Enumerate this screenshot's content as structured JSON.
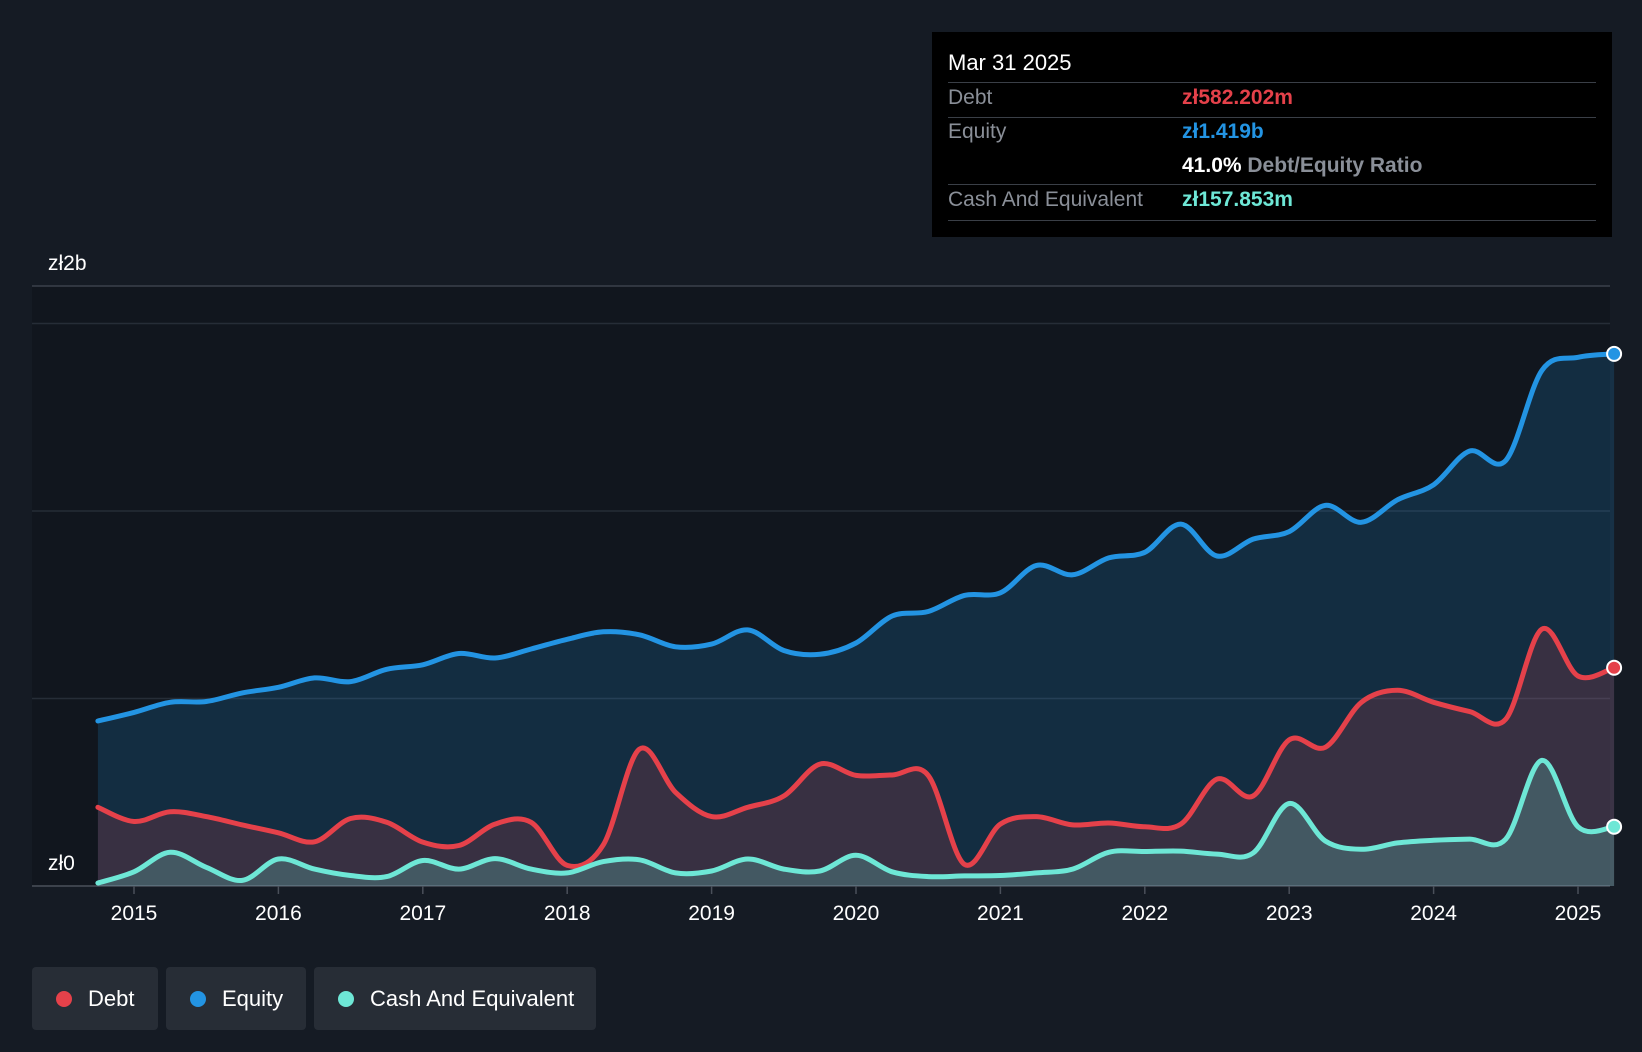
{
  "tooltip": {
    "date": "Mar 31 2025",
    "debt_label": "Debt",
    "debt_value": "zł582.202m",
    "equity_label": "Equity",
    "equity_value": "zł1.419b",
    "ratio_value": "41.0%",
    "ratio_label": "Debt/Equity Ratio",
    "cash_label": "Cash And Equivalent",
    "cash_value": "zł157.853m"
  },
  "legend": [
    {
      "label": "Debt",
      "color": "#e5414a"
    },
    {
      "label": "Equity",
      "color": "#2394e3"
    },
    {
      "label": "Cash And Equivalent",
      "color": "#6ee7d6"
    }
  ],
  "chart_data": {
    "type": "area",
    "y_top_label": "zł2b",
    "y_bottom_label": "zł0",
    "ylim": [
      0,
      2000
    ],
    "gridlines": [
      0,
      500,
      1000,
      1500
    ],
    "grid": true,
    "x_ticks": [
      "2015",
      "2016",
      "2017",
      "2018",
      "2019",
      "2020",
      "2021",
      "2022",
      "2023",
      "2024",
      "2025"
    ],
    "x_range": [
      2014.75,
      2025.25
    ],
    "series": [
      {
        "name": "Equity",
        "color": "#2394e3",
        "points": [
          [
            2014.75,
            440
          ],
          [
            2015.0,
            463
          ],
          [
            2015.25,
            490
          ],
          [
            2015.5,
            492
          ],
          [
            2015.75,
            515
          ],
          [
            2016.0,
            530
          ],
          [
            2016.25,
            555
          ],
          [
            2016.5,
            545
          ],
          [
            2016.75,
            578
          ],
          [
            2017.0,
            590
          ],
          [
            2017.25,
            620
          ],
          [
            2017.5,
            608
          ],
          [
            2017.75,
            632
          ],
          [
            2018.0,
            658
          ],
          [
            2018.25,
            678
          ],
          [
            2018.5,
            670
          ],
          [
            2018.75,
            638
          ],
          [
            2019.0,
            645
          ],
          [
            2019.25,
            683
          ],
          [
            2019.5,
            628
          ],
          [
            2019.75,
            618
          ],
          [
            2020.0,
            648
          ],
          [
            2020.25,
            720
          ],
          [
            2020.5,
            732
          ],
          [
            2020.75,
            775
          ],
          [
            2021.0,
            782
          ],
          [
            2021.25,
            855
          ],
          [
            2021.5,
            830
          ],
          [
            2021.75,
            875
          ],
          [
            2022.0,
            890
          ],
          [
            2022.25,
            965
          ],
          [
            2022.5,
            880
          ],
          [
            2022.75,
            925
          ],
          [
            2023.0,
            945
          ],
          [
            2023.25,
            1015
          ],
          [
            2023.5,
            970
          ],
          [
            2023.75,
            1030
          ],
          [
            2024.0,
            1070
          ],
          [
            2024.25,
            1160
          ],
          [
            2024.5,
            1135
          ],
          [
            2024.75,
            1375
          ],
          [
            2025.0,
            1410
          ],
          [
            2025.25,
            1419
          ]
        ]
      },
      {
        "name": "Debt",
        "color": "#e5414a",
        "points": [
          [
            2014.75,
            210
          ],
          [
            2015.0,
            172
          ],
          [
            2015.25,
            198
          ],
          [
            2015.5,
            185
          ],
          [
            2015.75,
            163
          ],
          [
            2016.0,
            142
          ],
          [
            2016.25,
            118
          ],
          [
            2016.5,
            180
          ],
          [
            2016.75,
            170
          ],
          [
            2017.0,
            117
          ],
          [
            2017.25,
            108
          ],
          [
            2017.5,
            165
          ],
          [
            2017.75,
            170
          ],
          [
            2018.0,
            55
          ],
          [
            2018.25,
            110
          ],
          [
            2018.5,
            365
          ],
          [
            2018.75,
            250
          ],
          [
            2019.0,
            185
          ],
          [
            2019.25,
            210
          ],
          [
            2019.5,
            240
          ],
          [
            2019.75,
            325
          ],
          [
            2020.0,
            295
          ],
          [
            2020.25,
            296
          ],
          [
            2020.5,
            295
          ],
          [
            2020.75,
            58
          ],
          [
            2021.0,
            165
          ],
          [
            2021.25,
            185
          ],
          [
            2021.5,
            163
          ],
          [
            2021.75,
            168
          ],
          [
            2022.0,
            158
          ],
          [
            2022.25,
            165
          ],
          [
            2022.5,
            285
          ],
          [
            2022.75,
            240
          ],
          [
            2023.0,
            390
          ],
          [
            2023.25,
            370
          ],
          [
            2023.5,
            490
          ],
          [
            2023.75,
            522
          ],
          [
            2024.0,
            490
          ],
          [
            2024.25,
            465
          ],
          [
            2024.5,
            445
          ],
          [
            2024.75,
            685
          ],
          [
            2025.0,
            560
          ],
          [
            2025.25,
            582
          ]
        ]
      },
      {
        "name": "Cash And Equivalent",
        "color": "#6ee7d6",
        "points": [
          [
            2014.75,
            8
          ],
          [
            2015.0,
            38
          ],
          [
            2015.25,
            90
          ],
          [
            2015.5,
            50
          ],
          [
            2015.75,
            15
          ],
          [
            2016.0,
            72
          ],
          [
            2016.25,
            45
          ],
          [
            2016.5,
            28
          ],
          [
            2016.75,
            25
          ],
          [
            2017.0,
            68
          ],
          [
            2017.25,
            45
          ],
          [
            2017.5,
            73
          ],
          [
            2017.75,
            45
          ],
          [
            2018.0,
            35
          ],
          [
            2018.25,
            65
          ],
          [
            2018.5,
            70
          ],
          [
            2018.75,
            35
          ],
          [
            2019.0,
            40
          ],
          [
            2019.25,
            72
          ],
          [
            2019.5,
            45
          ],
          [
            2019.75,
            40
          ],
          [
            2020.0,
            82
          ],
          [
            2020.25,
            38
          ],
          [
            2020.5,
            25
          ],
          [
            2020.75,
            27
          ],
          [
            2021.0,
            28
          ],
          [
            2021.25,
            35
          ],
          [
            2021.5,
            45
          ],
          [
            2021.75,
            90
          ],
          [
            2022.0,
            92
          ],
          [
            2022.25,
            93
          ],
          [
            2022.5,
            85
          ],
          [
            2022.75,
            88
          ],
          [
            2023.0,
            220
          ],
          [
            2023.25,
            120
          ],
          [
            2023.5,
            98
          ],
          [
            2023.75,
            115
          ],
          [
            2024.0,
            122
          ],
          [
            2024.25,
            125
          ],
          [
            2024.5,
            125
          ],
          [
            2024.75,
            335
          ],
          [
            2025.0,
            158
          ],
          [
            2025.25,
            158
          ]
        ]
      }
    ]
  }
}
